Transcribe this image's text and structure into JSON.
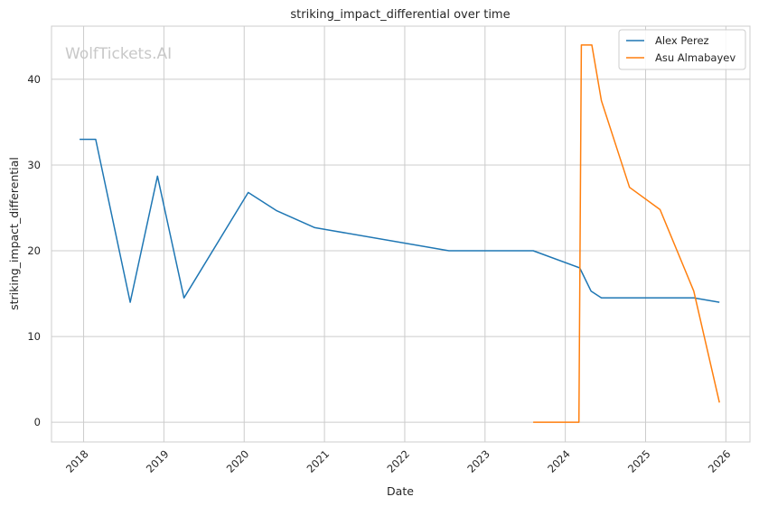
{
  "chart_data": {
    "type": "line",
    "title": "striking_impact_differential over time",
    "xlabel": "Date",
    "ylabel": "striking_impact_differential",
    "watermark": "WolfTickets.AI",
    "xlim": [
      2017.6,
      2026.3
    ],
    "ylim": [
      -2.3,
      46.2
    ],
    "x_ticks": [
      2018,
      2019,
      2020,
      2021,
      2022,
      2023,
      2024,
      2025,
      2026
    ],
    "x_tick_labels": [
      "2018",
      "2019",
      "2020",
      "2021",
      "2022",
      "2023",
      "2024",
      "2025",
      "2026"
    ],
    "y_ticks": [
      0,
      10,
      20,
      30,
      40
    ],
    "y_tick_labels": [
      "0",
      "10",
      "20",
      "30",
      "40"
    ],
    "grid": true,
    "legend_position": "top-right",
    "series": [
      {
        "name": "Alex Perez",
        "color": "#1f77b4",
        "points": [
          [
            2017.95,
            33.0
          ],
          [
            2018.15,
            33.0
          ],
          [
            2018.58,
            14.0
          ],
          [
            2018.92,
            28.7
          ],
          [
            2019.25,
            14.5
          ],
          [
            2020.05,
            26.8
          ],
          [
            2020.4,
            24.7
          ],
          [
            2020.88,
            22.7
          ],
          [
            2022.55,
            20.0
          ],
          [
            2023.6,
            20.0
          ],
          [
            2024.18,
            18.0
          ],
          [
            2024.32,
            15.3
          ],
          [
            2024.45,
            14.5
          ],
          [
            2025.6,
            14.5
          ],
          [
            2025.92,
            14.0
          ]
        ]
      },
      {
        "name": "Asu Almabayev",
        "color": "#ff7f0e",
        "points": [
          [
            2023.6,
            0.0
          ],
          [
            2024.17,
            0.0
          ],
          [
            2024.2,
            44.0
          ],
          [
            2024.33,
            44.0
          ],
          [
            2024.45,
            37.5
          ],
          [
            2024.8,
            27.4
          ],
          [
            2025.18,
            24.8
          ],
          [
            2025.6,
            15.3
          ],
          [
            2025.92,
            2.3
          ]
        ]
      }
    ]
  }
}
